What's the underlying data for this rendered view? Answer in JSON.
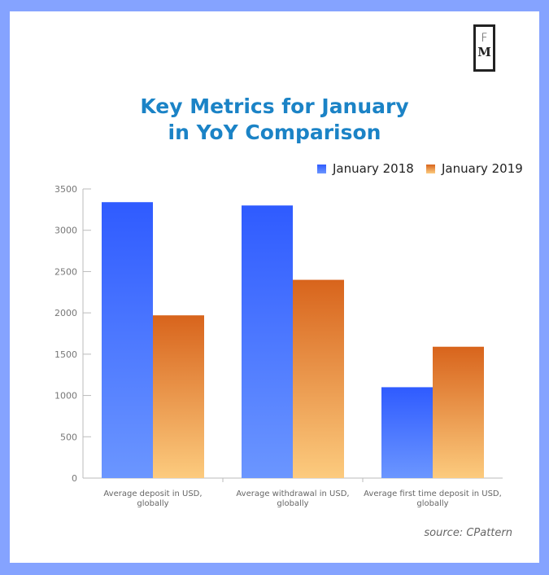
{
  "logo": {
    "top": "F",
    "bottom": "M"
  },
  "chart_data": {
    "type": "bar",
    "title": "Key Metrics for January in YoY Comparison",
    "title_lines": [
      "Key Metrics for January",
      "in YoY Comparison"
    ],
    "categories": [
      [
        "Average deposit in USD,",
        "globally"
      ],
      [
        "Average withdrawal in USD,",
        "globally"
      ],
      [
        "Average first time deposit in USD,",
        "globally"
      ]
    ],
    "series": [
      {
        "name": "January 2018",
        "values": [
          3340,
          3300,
          1100
        ],
        "color_top": "#2f5bff",
        "color_bottom": "#6b96ff"
      },
      {
        "name": "January 2019",
        "values": [
          1970,
          2400,
          1590
        ],
        "color_top": "#d8641c",
        "color_bottom": "#fccb7e"
      }
    ],
    "ylim": [
      0,
      3500
    ],
    "yticks": [
      "0",
      "500",
      "1000",
      "1500",
      "2000",
      "2500",
      "3000",
      "3500"
    ],
    "legend": "top-right",
    "grid": false,
    "xlabel": "",
    "ylabel": ""
  },
  "source": "source: CPattern"
}
